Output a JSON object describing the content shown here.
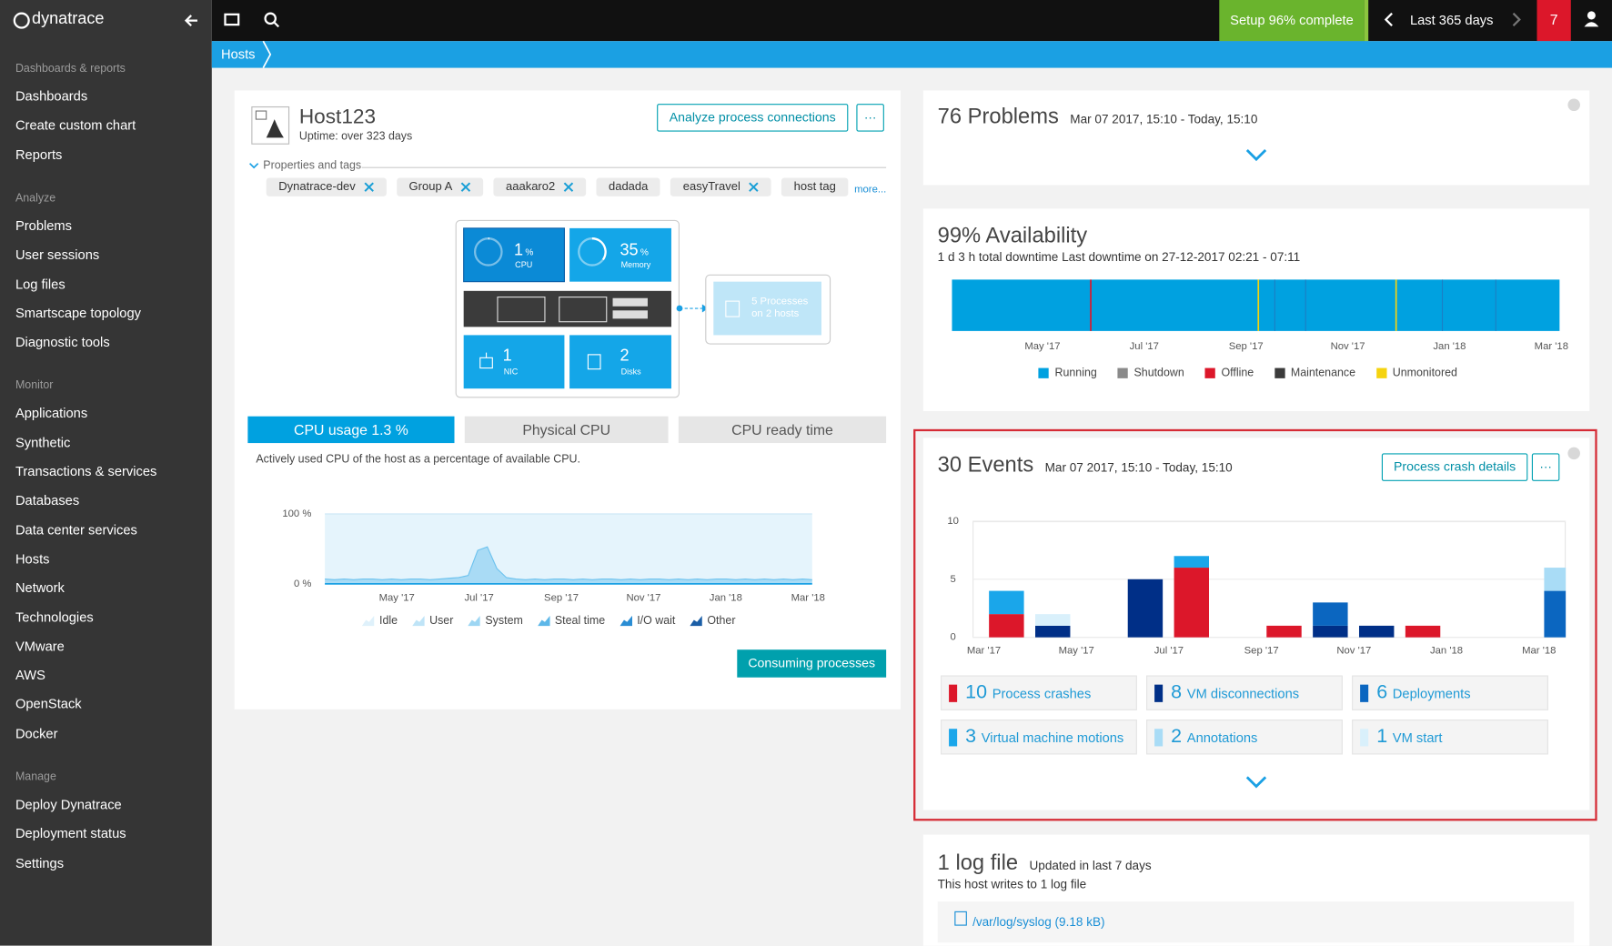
{
  "sidebar": {
    "logo": "dynatrace",
    "sections": [
      {
        "title": "Dashboards & reports",
        "items": [
          "Dashboards",
          "Create custom chart",
          "Reports"
        ]
      },
      {
        "title": "Analyze",
        "items": [
          "Problems",
          "User sessions",
          "Log files",
          "Smartscape topology",
          "Diagnostic tools"
        ]
      },
      {
        "title": "Monitor",
        "items": [
          "Applications",
          "Synthetic",
          "Transactions & services",
          "Databases",
          "Data center services",
          "Hosts",
          "Network",
          "Technologies",
          "VMware",
          "AWS",
          "OpenStack",
          "Docker"
        ]
      },
      {
        "title": "Manage",
        "items": [
          "Deploy Dynatrace",
          "Deployment status",
          "Settings"
        ]
      }
    ]
  },
  "topbar": {
    "setup": "Setup 96% complete",
    "timeframe": "Last 365 days",
    "problems": 7
  },
  "breadcrumb": "Hosts",
  "host": {
    "name": "Host123",
    "uptime": "Uptime: over 323 days",
    "analyze_button": "Analyze process connections",
    "more_button": "···",
    "properties_label": "Properties and tags",
    "tags": [
      {
        "label": "Dynatrace-dev",
        "removable": true
      },
      {
        "label": "Group A",
        "removable": true
      },
      {
        "label": "aaakaro2",
        "removable": true
      },
      {
        "label": "dadada",
        "removable": false
      },
      {
        "label": "easyTravel",
        "removable": true
      },
      {
        "label": "host tag",
        "removable": false
      }
    ],
    "more_link": "more...",
    "tiles": {
      "cpu": {
        "value": 1,
        "unit": "%",
        "label": "CPU"
      },
      "memory": {
        "value": 35,
        "unit": "%",
        "label": "Memory"
      },
      "nic": {
        "value": 1,
        "label": "NIC"
      },
      "disks": {
        "value": 2,
        "label": "Disks"
      },
      "processes": {
        "label": "5 Processes",
        "sublabel": "on 2 hosts"
      }
    },
    "tabs": [
      "CPU usage 1.3 %",
      "Physical CPU",
      "CPU ready time"
    ],
    "description": "Actively used CPU of the host as a percentage of available CPU.",
    "cpu_chart": {
      "type": "area",
      "color": "#a9dbf5",
      "line_color": "#6cc2ee",
      "values": [
        7,
        6,
        7,
        6,
        7,
        7,
        6,
        7,
        6,
        7,
        7,
        6,
        7,
        8,
        9,
        12,
        48,
        53,
        22,
        9,
        7,
        6,
        7,
        6,
        7,
        7,
        6,
        7,
        6,
        7,
        7,
        6,
        7,
        6,
        7,
        7,
        6,
        7,
        6,
        7,
        6,
        7,
        7,
        6,
        7,
        6,
        7,
        6,
        7,
        6,
        7,
        6
      ],
      "ylim": [
        0,
        100
      ],
      "yticks": [
        {
          "value": 100,
          "label": "100 %"
        },
        {
          "value": 0,
          "label": "0 %"
        }
      ],
      "xlabels": [
        "May '17",
        "Jul '17",
        "Sep '17",
        "Nov '17",
        "Jan '18",
        "Mar '18"
      ],
      "legend": [
        {
          "name": "Idle",
          "color": "#dff1fb"
        },
        {
          "name": "User",
          "color": "#bfe4f7"
        },
        {
          "name": "System",
          "color": "#9dd6f3"
        },
        {
          "name": "Steal time",
          "color": "#5db7e8"
        },
        {
          "name": "I/O wait",
          "color": "#2a8dd4"
        },
        {
          "name": "Other",
          "color": "#1b5ea6"
        }
      ]
    },
    "consuming_button": "Consuming processes"
  },
  "problems": {
    "title": "76 Problems",
    "timeframe": "Mar 07 2017, 15:10 - Today, 15:10"
  },
  "availability": {
    "title": "99% Availability",
    "subtitle": "1 d 3 h total downtime Last downtime on 27-12-2017 02:21 - 07:11",
    "xlabels": [
      "May '17",
      "Jul '17",
      "Sep '17",
      "Nov '17",
      "Jan '18",
      "Mar '18"
    ],
    "legend": [
      {
        "name": "Running",
        "color": "#00a1e0"
      },
      {
        "name": "Shutdown",
        "color": "#8a8a8a"
      },
      {
        "name": "Offline",
        "color": "#dc172a"
      },
      {
        "name": "Maintenance",
        "color": "#3b3b3b"
      },
      {
        "name": "Unmonitored",
        "color": "#f5d30f"
      }
    ]
  },
  "events": {
    "title": "30 Events",
    "timeframe": "Mar 07 2017, 15:10 - Today, 15:10",
    "button": "Process crash details",
    "more_button": "···",
    "chart": {
      "type": "bar",
      "stacked": true,
      "categories": [
        "Mar '17",
        null,
        "May '17",
        null,
        "Jul '17",
        null,
        "Sep '17",
        null,
        "Nov '17",
        null,
        "Jan '18",
        null,
        "Mar '18"
      ],
      "ylim": [
        0,
        10
      ],
      "yticks": [
        0,
        5,
        10
      ],
      "series": [
        {
          "name": "Process crashes",
          "total": 10,
          "color": "#dc172a",
          "values": [
            2,
            0,
            0,
            0,
            6,
            0,
            1,
            0,
            0,
            1,
            0,
            0,
            0
          ]
        },
        {
          "name": "VM disconnections",
          "total": 8,
          "color": "#002f87",
          "values": [
            0,
            1,
            0,
            5,
            0,
            0,
            0,
            1,
            1,
            0,
            0,
            0,
            0
          ]
        },
        {
          "name": "Deployments",
          "total": 6,
          "color": "#0b66c0",
          "values": [
            0,
            0,
            0,
            0,
            0,
            0,
            0,
            2,
            0,
            0,
            0,
            0,
            4
          ]
        },
        {
          "name": "Virtual machine motions",
          "total": 3,
          "color": "#1aa6ea",
          "values": [
            2,
            0,
            0,
            0,
            1,
            0,
            0,
            0,
            0,
            0,
            0,
            0,
            0
          ]
        },
        {
          "name": "Annotations",
          "total": 2,
          "color": "#a9dcf6",
          "values": [
            0,
            0,
            0,
            0,
            0,
            0,
            0,
            0,
            0,
            0,
            0,
            0,
            2
          ]
        },
        {
          "name": "VM start",
          "total": 1,
          "color": "#d9f0fb",
          "values": [
            0,
            1,
            0,
            0,
            0,
            0,
            0,
            0,
            0,
            0,
            0,
            0,
            0
          ]
        }
      ]
    }
  },
  "log": {
    "title": "1 log file",
    "updated": "Updated in last 7 days",
    "description": "This host writes to 1 log file",
    "file": "/var/log/syslog",
    "size": "(9.18 kB)"
  }
}
